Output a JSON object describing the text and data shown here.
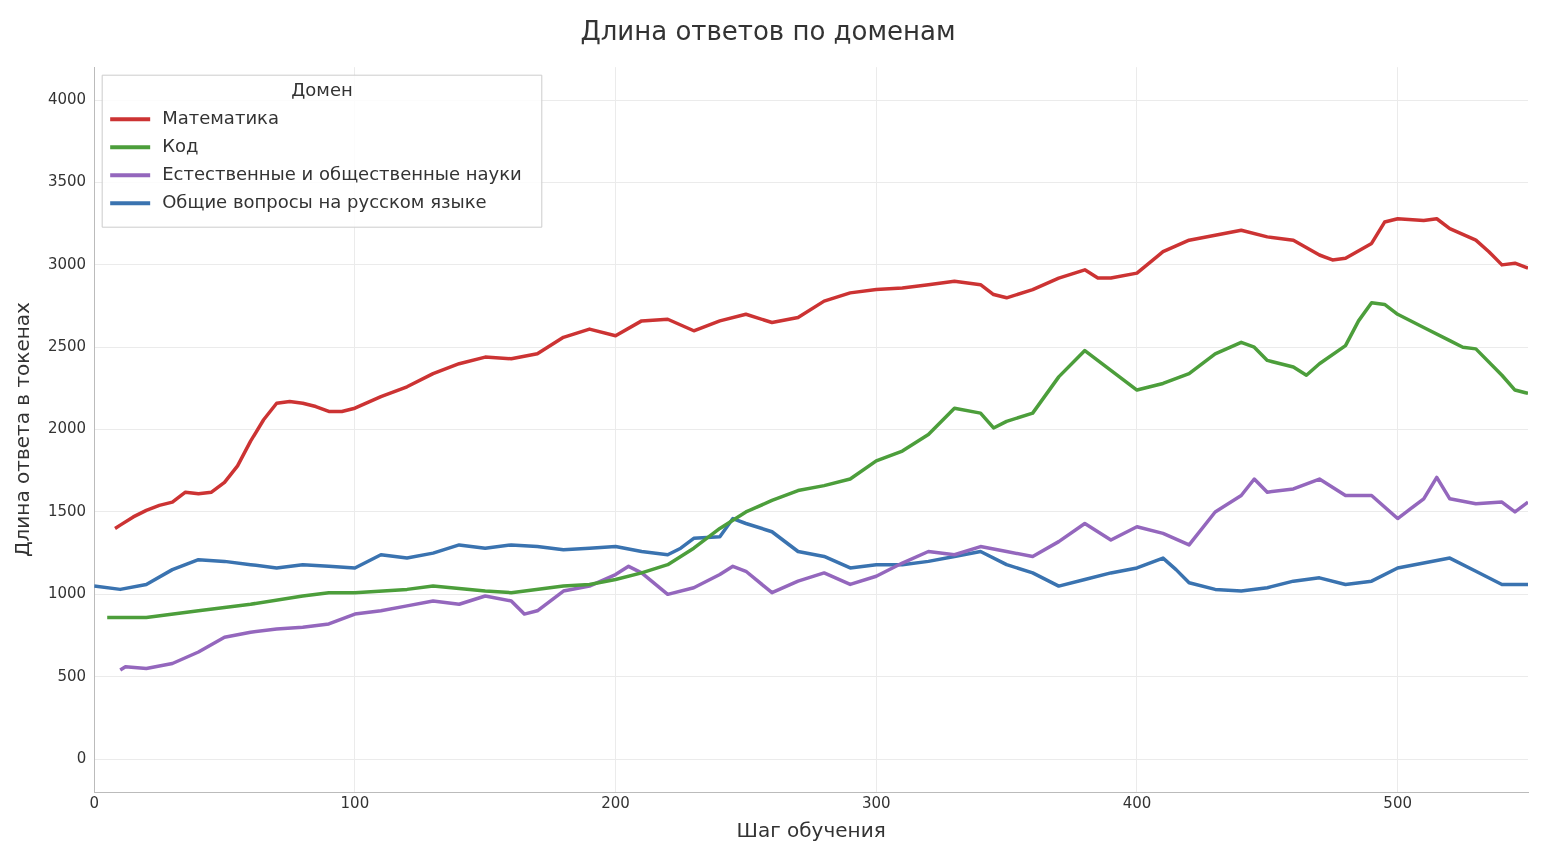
{
  "chart_data": {
    "type": "line",
    "title": "Длина ответов по доменам",
    "xlabel": "Шаг обучения",
    "ylabel": "Длина ответа в токенах",
    "legend_title": "Домен",
    "legend": "top left",
    "grid": true,
    "marker": "none",
    "line_style": "solid",
    "xlim": [
      0,
      550
    ],
    "xticks": [
      0,
      100,
      200,
      300,
      400,
      500
    ],
    "ylim": [
      -200,
      4200
    ],
    "yticks": [
      0,
      500,
      1000,
      1500,
      2000,
      2500,
      3000,
      3500,
      4000
    ],
    "series": [
      {
        "name": "Математика",
        "color": "#cc3333",
        "x": [
          8,
          10,
          15,
          20,
          25,
          30,
          35,
          40,
          45,
          50,
          55,
          60,
          65,
          70,
          75,
          80,
          85,
          90,
          95,
          100,
          110,
          120,
          130,
          140,
          150,
          160,
          170,
          180,
          190,
          200,
          210,
          220,
          230,
          240,
          250,
          260,
          270,
          280,
          290,
          300,
          310,
          320,
          330,
          340,
          345,
          350,
          360,
          370,
          380,
          385,
          390,
          400,
          410,
          420,
          430,
          440,
          450,
          460,
          470,
          475,
          480,
          490,
          495,
          500,
          510,
          515,
          520,
          530,
          535,
          540,
          545,
          550
        ],
        "values": [
          1400,
          1420,
          1470,
          1510,
          1540,
          1560,
          1620,
          1610,
          1620,
          1680,
          1780,
          1930,
          2060,
          2160,
          2170,
          2160,
          2140,
          2110,
          2110,
          2130,
          2200,
          2260,
          2340,
          2400,
          2440,
          2430,
          2460,
          2560,
          2610,
          2570,
          2660,
          2670,
          2600,
          2660,
          2700,
          2650,
          2680,
          2780,
          2830,
          2850,
          2860,
          2880,
          2900,
          2880,
          2820,
          2800,
          2850,
          2920,
          2970,
          2920,
          2920,
          2950,
          3080,
          3150,
          3180,
          3210,
          3170,
          3150,
          3060,
          3030,
          3040,
          3130,
          3260,
          3280,
          3270,
          3280,
          3220,
          3150,
          3080,
          3000,
          3010,
          2980
        ]
      },
      {
        "name": "Код",
        "color": "#4c9e3b",
        "x": [
          5,
          20,
          40,
          60,
          80,
          90,
          100,
          120,
          130,
          150,
          160,
          180,
          190,
          200,
          210,
          220,
          230,
          240,
          250,
          260,
          270,
          280,
          290,
          300,
          310,
          320,
          330,
          340,
          345,
          350,
          360,
          370,
          380,
          390,
          400,
          410,
          420,
          430,
          440,
          445,
          450,
          460,
          465,
          470,
          480,
          485,
          490,
          495,
          500,
          510,
          520,
          525,
          530,
          540,
          545,
          550
        ],
        "values": [
          860,
          860,
          900,
          940,
          990,
          1010,
          1010,
          1030,
          1050,
          1020,
          1010,
          1050,
          1060,
          1090,
          1130,
          1180,
          1280,
          1400,
          1500,
          1570,
          1630,
          1660,
          1700,
          1810,
          1870,
          1970,
          2130,
          2100,
          2010,
          2050,
          2100,
          2320,
          2480,
          2360,
          2240,
          2280,
          2340,
          2460,
          2530,
          2500,
          2420,
          2380,
          2330,
          2400,
          2510,
          2660,
          2770,
          2760,
          2700,
          2620,
          2540,
          2500,
          2490,
          2330,
          2240,
          2220
        ]
      },
      {
        "name": "Естественные и общественные науки",
        "color": "#9467bd",
        "x": [
          10,
          12,
          20,
          30,
          40,
          50,
          60,
          70,
          80,
          90,
          100,
          110,
          120,
          130,
          140,
          150,
          160,
          165,
          170,
          180,
          190,
          200,
          205,
          210,
          220,
          230,
          240,
          245,
          250,
          260,
          270,
          280,
          290,
          300,
          310,
          320,
          330,
          340,
          350,
          360,
          370,
          380,
          390,
          400,
          410,
          420,
          430,
          440,
          445,
          450,
          460,
          470,
          480,
          490,
          500,
          505,
          510,
          515,
          520,
          530,
          540,
          545,
          550
        ],
        "values": [
          540,
          560,
          550,
          580,
          650,
          740,
          770,
          790,
          800,
          820,
          880,
          900,
          930,
          960,
          940,
          990,
          960,
          880,
          900,
          1020,
          1050,
          1120,
          1170,
          1130,
          1000,
          1040,
          1120,
          1170,
          1140,
          1010,
          1080,
          1130,
          1060,
          1110,
          1190,
          1260,
          1240,
          1290,
          1260,
          1230,
          1320,
          1430,
          1330,
          1410,
          1370,
          1300,
          1500,
          1600,
          1700,
          1620,
          1640,
          1700,
          1600,
          1600,
          1460,
          1520,
          1580,
          1710,
          1580,
          1550,
          1560,
          1500,
          1560
        ]
      },
      {
        "name": "Общие вопросы на русском языке",
        "color": "#3a73b0",
        "x": [
          0,
          10,
          20,
          30,
          40,
          50,
          60,
          70,
          80,
          90,
          100,
          110,
          120,
          130,
          140,
          150,
          160,
          170,
          180,
          190,
          200,
          210,
          220,
          225,
          230,
          240,
          245,
          250,
          260,
          270,
          280,
          290,
          300,
          310,
          320,
          330,
          340,
          350,
          360,
          370,
          380,
          390,
          400,
          410,
          415,
          420,
          430,
          440,
          450,
          460,
          470,
          480,
          490,
          500,
          510,
          520,
          530,
          540,
          550
        ],
        "values": [
          1050,
          1030,
          1060,
          1150,
          1210,
          1200,
          1180,
          1160,
          1180,
          1170,
          1160,
          1240,
          1220,
          1250,
          1300,
          1280,
          1300,
          1290,
          1270,
          1280,
          1290,
          1260,
          1240,
          1280,
          1340,
          1350,
          1460,
          1430,
          1380,
          1260,
          1230,
          1160,
          1180,
          1180,
          1200,
          1230,
          1260,
          1180,
          1130,
          1050,
          1090,
          1130,
          1160,
          1220,
          1150,
          1070,
          1030,
          1020,
          1040,
          1080,
          1100,
          1060,
          1080,
          1160,
          1190,
          1220,
          1140,
          1060,
          1060
        ]
      }
    ]
  }
}
